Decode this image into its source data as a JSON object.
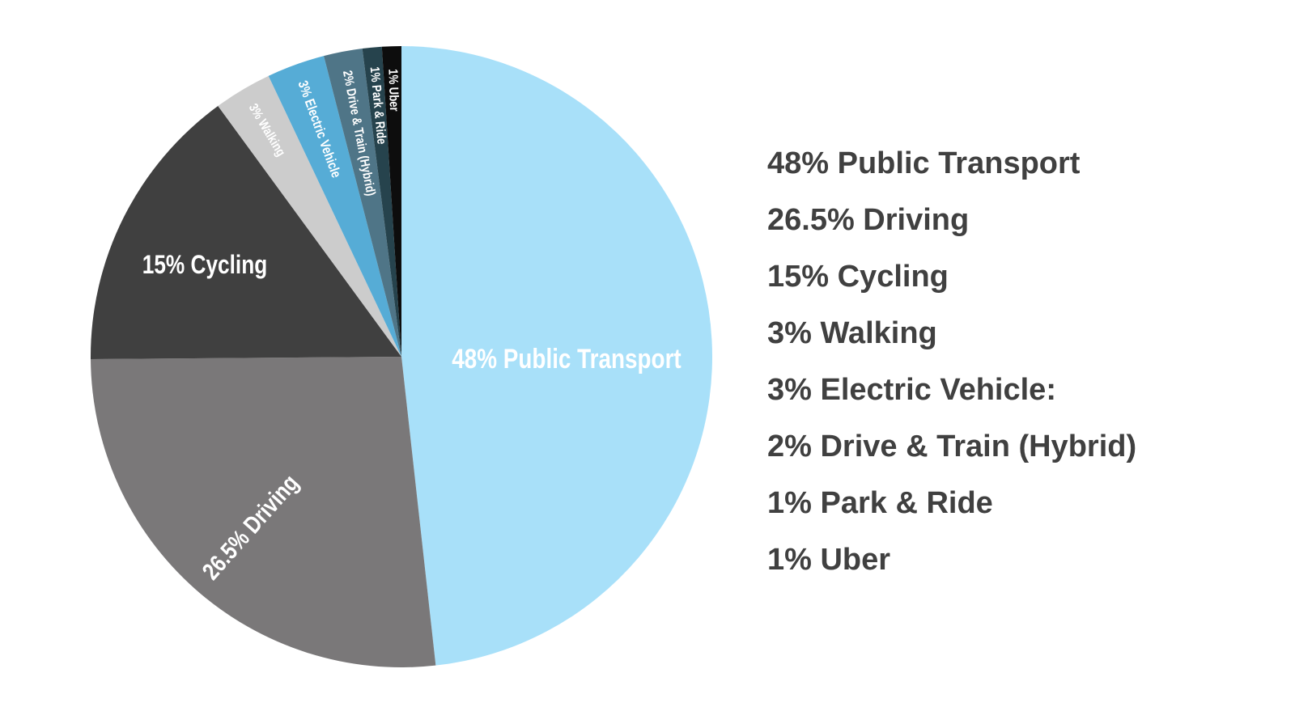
{
  "chart_data": {
    "type": "pie",
    "title": "",
    "start_angle": "top",
    "direction": "clockwise",
    "slices": [
      {
        "label": "Public Transport",
        "value": 48,
        "slice_label": "48% Public Transport",
        "legend_label": "48% Public Transport",
        "color": "#a8e0f9"
      },
      {
        "label": "Driving",
        "value": 26.5,
        "slice_label": "26.5% Driving",
        "legend_label": "26.5% Driving",
        "color": "#7a7879"
      },
      {
        "label": "Cycling",
        "value": 15,
        "slice_label": "15% Cycling",
        "legend_label": "15% Cycling",
        "color": "#404040"
      },
      {
        "label": "Walking",
        "value": 3,
        "slice_label": "3% Walking",
        "legend_label": "3% Walking",
        "color": "#cccccc"
      },
      {
        "label": "Electric Vehicle",
        "value": 3,
        "slice_label": "3% Electric Vehicle",
        "legend_label": "3% Electric Vehicle:",
        "color": "#56acd6"
      },
      {
        "label": "Drive & Train (Hybrid)",
        "value": 2,
        "slice_label": "2% Drive & Train (Hybrid)",
        "legend_label": "2% Drive & Train (Hybrid)",
        "color": "#4f7587"
      },
      {
        "label": "Park & Ride",
        "value": 1,
        "slice_label": "1% Park & Ride",
        "legend_label": "1% Park & Ride",
        "color": "#26434d"
      },
      {
        "label": "Uber",
        "value": 1,
        "slice_label": "1% Uber",
        "legend_label": "1% Uber",
        "color": "#0d0d0d"
      }
    ],
    "legend_position": "right"
  }
}
